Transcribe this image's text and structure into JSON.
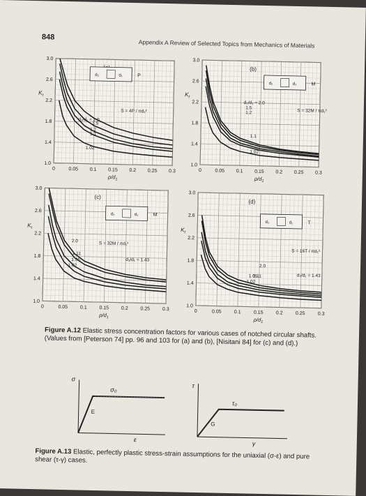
{
  "page_number": "848",
  "running_head": "Appendix A   Review of Selected Topics from Mechanics of Materials",
  "charts": [
    {
      "panel": "(a)",
      "ylabel": "K",
      "ylabel_sub": "t",
      "xlabel": "ρ/d",
      "xlabel_sub": "1",
      "x_ticks": [
        "0",
        "0.05",
        "0.1",
        "0.15",
        "0.2",
        "0.25",
        "0.3"
      ],
      "y_ticks": [
        "1.0",
        "1.4",
        "1.8",
        "2.2",
        "2.6",
        "3.0"
      ],
      "formula": "S = 4P / πd₁²",
      "load_label": "P",
      "d2": "d₂",
      "d1": "d₁",
      "curve_labels": [
        "d₂/d₁ = 2.0",
        "1.5",
        "1.2",
        "1.1",
        "1.02"
      ]
    },
    {
      "panel": "(b)",
      "ylabel": "K",
      "ylabel_sub": "t",
      "xlabel": "ρ/d",
      "xlabel_sub": "1",
      "x_ticks": [
        "0",
        "0.05",
        "0.1",
        "0.15",
        "0.2",
        "0.25",
        "0.3"
      ],
      "y_ticks": [
        "1.0",
        "1.4",
        "1.8",
        "2.2",
        "2.6",
        "3.0"
      ],
      "formula": "S = 32M / πd₁³",
      "load_label": "M",
      "d2": "d₂",
      "d1": "d₁",
      "curve_labels": [
        "d₂/d₁ = 2.0",
        "1.5",
        "1.2",
        "1.1",
        "1.02"
      ]
    },
    {
      "panel": "(c)",
      "ylabel": "K",
      "ylabel_sub": "t",
      "xlabel": "ρ/d",
      "xlabel_sub": "1",
      "x_ticks": [
        "0",
        "0.05",
        "0.1",
        "0.15",
        "0.2",
        "0.25",
        "0.3"
      ],
      "y_ticks": [
        "1.0",
        "1.4",
        "1.8",
        "2.2",
        "2.6",
        "3.0"
      ],
      "formula": "S = 32M / πd₁³",
      "load_label": "M",
      "d2": "d₂",
      "d1": "d₁",
      "curve_labels": [
        "2.0",
        "1.11",
        "1.05",
        "1.02",
        "d₂/d₁ = 1.43"
      ]
    },
    {
      "panel": "(d)",
      "ylabel": "K",
      "ylabel_sub": "t",
      "xlabel": "ρ/d",
      "xlabel_sub": "1",
      "x_ticks": [
        "0",
        "0.05",
        "0.1",
        "0.15",
        "0.2",
        "0.25",
        "0.3"
      ],
      "y_ticks": [
        "1.0",
        "1.4",
        "1.8",
        "2.2",
        "2.6",
        "3.0"
      ],
      "formula": "S = 16T / πd₁³",
      "load_label": "T",
      "d2": "d₂",
      "d1": "d₁",
      "curve_labels": [
        "2.0",
        "1.05",
        "1.11",
        "1.02",
        "d₂/d₁ = 1.43"
      ]
    }
  ],
  "chart_data": [
    {
      "type": "line",
      "title": "(a)",
      "xlabel": "ρ/d₁",
      "ylabel": "Kt",
      "xlim": [
        0,
        0.3
      ],
      "ylim": [
        1.0,
        3.0
      ],
      "series": [
        {
          "name": "2.0",
          "x": [
            0.01,
            0.02,
            0.03,
            0.05,
            0.075,
            0.1,
            0.15,
            0.2,
            0.25,
            0.3
          ],
          "y": [
            3.0,
            2.75,
            2.5,
            2.2,
            2.0,
            1.87,
            1.7,
            1.6,
            1.53,
            1.48
          ]
        },
        {
          "name": "1.5",
          "x": [
            0.01,
            0.02,
            0.03,
            0.05,
            0.075,
            0.1,
            0.15,
            0.2,
            0.25,
            0.3
          ],
          "y": [
            2.9,
            2.6,
            2.35,
            2.05,
            1.85,
            1.73,
            1.58,
            1.49,
            1.43,
            1.39
          ]
        },
        {
          "name": "1.2",
          "x": [
            0.01,
            0.02,
            0.03,
            0.05,
            0.075,
            0.1,
            0.15,
            0.2,
            0.25,
            0.3
          ],
          "y": [
            2.75,
            2.45,
            2.2,
            1.92,
            1.73,
            1.62,
            1.48,
            1.4,
            1.35,
            1.32
          ]
        },
        {
          "name": "1.1",
          "x": [
            0.01,
            0.02,
            0.03,
            0.05,
            0.075,
            0.1,
            0.15,
            0.2,
            0.25,
            0.3
          ],
          "y": [
            2.6,
            2.3,
            2.08,
            1.82,
            1.65,
            1.55,
            1.42,
            1.35,
            1.3,
            1.27
          ]
        },
        {
          "name": "1.02",
          "x": [
            0.01,
            0.02,
            0.03,
            0.05,
            0.075,
            0.1,
            0.15,
            0.2,
            0.25,
            0.3
          ],
          "y": [
            2.2,
            1.9,
            1.73,
            1.52,
            1.4,
            1.33,
            1.25,
            1.21,
            1.18,
            1.16
          ]
        }
      ]
    },
    {
      "type": "line",
      "title": "(b)",
      "xlabel": "ρ/d₁",
      "ylabel": "Kt",
      "xlim": [
        0,
        0.3
      ],
      "ylim": [
        1.0,
        3.0
      ],
      "series": [
        {
          "name": "2.0",
          "x": [
            0.01,
            0.02,
            0.03,
            0.05,
            0.075,
            0.1,
            0.15,
            0.2,
            0.25,
            0.3
          ],
          "y": [
            2.9,
            2.5,
            2.2,
            1.85,
            1.63,
            1.52,
            1.4,
            1.33,
            1.29,
            1.26
          ]
        },
        {
          "name": "1.5",
          "x": [
            0.01,
            0.02,
            0.03,
            0.05,
            0.075,
            0.1,
            0.15,
            0.2,
            0.25,
            0.3
          ],
          "y": [
            2.8,
            2.4,
            2.12,
            1.79,
            1.58,
            1.48,
            1.37,
            1.31,
            1.27,
            1.24
          ]
        },
        {
          "name": "1.2",
          "x": [
            0.01,
            0.02,
            0.03,
            0.05,
            0.075,
            0.1,
            0.15,
            0.2,
            0.25,
            0.3
          ],
          "y": [
            2.65,
            2.28,
            2.02,
            1.72,
            1.52,
            1.43,
            1.33,
            1.28,
            1.24,
            1.21
          ]
        },
        {
          "name": "1.1",
          "x": [
            0.01,
            0.02,
            0.03,
            0.05,
            0.075,
            0.1,
            0.15,
            0.2,
            0.25,
            0.3
          ],
          "y": [
            2.5,
            2.15,
            1.92,
            1.64,
            1.47,
            1.39,
            1.3,
            1.25,
            1.22,
            1.19
          ]
        },
        {
          "name": "1.02",
          "x": [
            0.01,
            0.02,
            0.03,
            0.05,
            0.075,
            0.1,
            0.15,
            0.2,
            0.25,
            0.3
          ],
          "y": [
            2.1,
            1.8,
            1.62,
            1.44,
            1.33,
            1.27,
            1.2,
            1.17,
            1.15,
            1.13
          ]
        }
      ]
    },
    {
      "type": "line",
      "title": "(c)",
      "xlabel": "ρ/d₁",
      "ylabel": "Kt",
      "xlim": [
        0,
        0.3
      ],
      "ylim": [
        1.0,
        3.0
      ],
      "series": [
        {
          "name": "2.0",
          "x": [
            0.01,
            0.02,
            0.03,
            0.05,
            0.075,
            0.1,
            0.15,
            0.2,
            0.25,
            0.3
          ],
          "y": [
            3.0,
            2.7,
            2.42,
            2.08,
            1.85,
            1.72,
            1.58,
            1.5,
            1.45,
            1.42
          ]
        },
        {
          "name": "1.43",
          "x": [
            0.01,
            0.02,
            0.03,
            0.05,
            0.075,
            0.1,
            0.15,
            0.2,
            0.25,
            0.3
          ],
          "y": [
            2.9,
            2.6,
            2.33,
            2.0,
            1.78,
            1.66,
            1.53,
            1.46,
            1.41,
            1.38
          ]
        },
        {
          "name": "1.11",
          "x": [
            0.01,
            0.02,
            0.03,
            0.05,
            0.075,
            0.1,
            0.15,
            0.2,
            0.25,
            0.3
          ],
          "y": [
            2.7,
            2.35,
            2.1,
            1.81,
            1.63,
            1.53,
            1.42,
            1.36,
            1.32,
            1.3
          ]
        },
        {
          "name": "1.05",
          "x": [
            0.01,
            0.02,
            0.03,
            0.05,
            0.075,
            0.1,
            0.15,
            0.2,
            0.25,
            0.3
          ],
          "y": [
            2.5,
            2.2,
            1.96,
            1.7,
            1.54,
            1.45,
            1.36,
            1.31,
            1.28,
            1.26
          ]
        },
        {
          "name": "1.02",
          "x": [
            0.01,
            0.02,
            0.03,
            0.05,
            0.075,
            0.1,
            0.15,
            0.2,
            0.25,
            0.3
          ],
          "y": [
            2.2,
            1.92,
            1.74,
            1.54,
            1.42,
            1.36,
            1.29,
            1.25,
            1.23,
            1.21
          ]
        }
      ]
    },
    {
      "type": "line",
      "title": "(d)",
      "xlabel": "ρ/d₁",
      "ylabel": "Kt",
      "xlim": [
        0,
        0.3
      ],
      "ylim": [
        1.0,
        3.0
      ],
      "series": [
        {
          "name": "2.0",
          "x": [
            0.01,
            0.02,
            0.03,
            0.05,
            0.075,
            0.1,
            0.15,
            0.2,
            0.25,
            0.3
          ],
          "y": [
            2.6,
            2.2,
            1.95,
            1.7,
            1.55,
            1.47,
            1.38,
            1.33,
            1.3,
            1.28
          ]
        },
        {
          "name": "1.43",
          "x": [
            0.01,
            0.02,
            0.03,
            0.05,
            0.075,
            0.1,
            0.15,
            0.2,
            0.25,
            0.3
          ],
          "y": [
            2.5,
            2.12,
            1.88,
            1.64,
            1.5,
            1.42,
            1.34,
            1.3,
            1.27,
            1.25
          ]
        },
        {
          "name": "1.11",
          "x": [
            0.01,
            0.02,
            0.03,
            0.05,
            0.075,
            0.1,
            0.15,
            0.2,
            0.25,
            0.3
          ],
          "y": [
            2.3,
            1.97,
            1.77,
            1.56,
            1.43,
            1.37,
            1.3,
            1.26,
            1.24,
            1.22
          ]
        },
        {
          "name": "1.05",
          "x": [
            0.01,
            0.02,
            0.03,
            0.05,
            0.075,
            0.1,
            0.15,
            0.2,
            0.25,
            0.3
          ],
          "y": [
            2.15,
            1.85,
            1.68,
            1.49,
            1.38,
            1.32,
            1.26,
            1.23,
            1.21,
            1.19
          ]
        },
        {
          "name": "1.02",
          "x": [
            0.01,
            0.02,
            0.03,
            0.05,
            0.075,
            0.1,
            0.15,
            0.2,
            0.25,
            0.3
          ],
          "y": [
            1.9,
            1.66,
            1.52,
            1.38,
            1.3,
            1.25,
            1.2,
            1.17,
            1.15,
            1.14
          ]
        }
      ]
    }
  ],
  "figure_a12": {
    "label": "Figure A.12",
    "text": "Elastic stress concentration factors for various cases of notched circular shafts. (Values from [Peterson 74] pp. 96 and 103 for (a) and (b), [Nisitani 84] for (c) and (d).)"
  },
  "figure_a13": {
    "label": "Figure A.13",
    "text": "Elastic, perfectly plastic stress-strain assumptions for the uniaxial (σ-ε) and pure shear (τ-γ) cases.",
    "left": {
      "y_axis": "σ",
      "level": "σ₀",
      "slope": "E",
      "x_axis": "ε"
    },
    "right": {
      "y_axis": "τ",
      "level": "τ₀",
      "slope": "G",
      "x_axis": "γ"
    }
  }
}
